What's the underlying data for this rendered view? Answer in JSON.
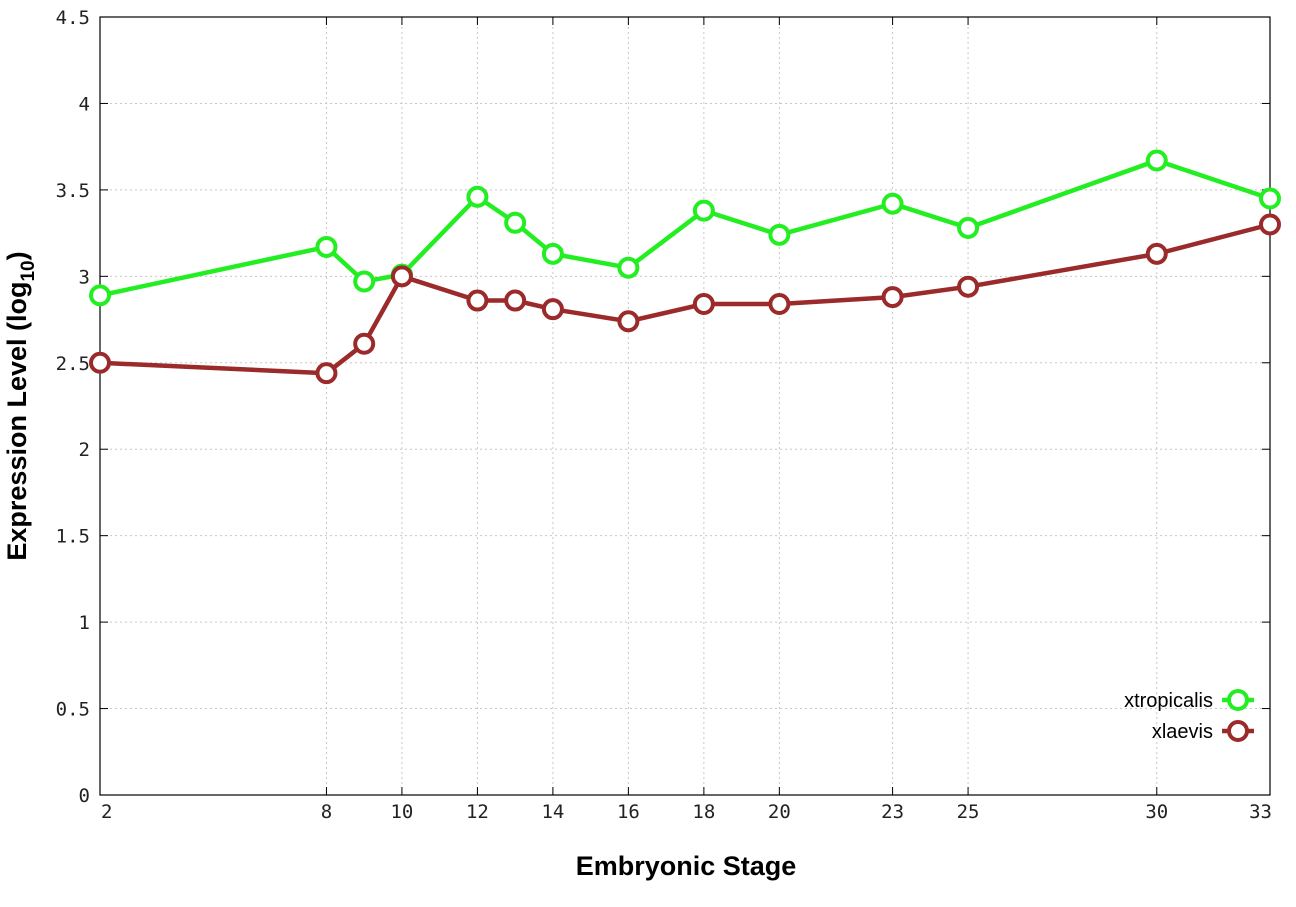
{
  "chart_data": {
    "type": "line",
    "xlabel": "Embryonic Stage",
    "ylabel_main": "Expression Level (log",
    "ylabel_sub": "10",
    "ylabel_close": ")",
    "ylim": [
      0,
      4.5
    ],
    "yticks": [
      0,
      0.5,
      1,
      1.5,
      2,
      2.5,
      3,
      3.5,
      4,
      4.5
    ],
    "ytick_labels": [
      "0",
      "0.5",
      "1",
      "1.5",
      "2",
      "2.5",
      "3",
      "3.5",
      "4",
      "4.5"
    ],
    "x": [
      2,
      8,
      9,
      10,
      12,
      13,
      14,
      16,
      18,
      20,
      23,
      25,
      30,
      33
    ],
    "xticks": [
      2,
      8,
      10,
      12,
      14,
      16,
      18,
      20,
      23,
      25,
      30,
      33
    ],
    "xtick_labels": [
      "2",
      "8",
      "10",
      "12",
      "14",
      "16",
      "18",
      "20",
      "23",
      "25",
      "30",
      "33"
    ],
    "grid": true,
    "legend_position": "bottom-right",
    "series": [
      {
        "name": "xtropicalis",
        "color": "#22ee22",
        "values": [
          2.89,
          3.17,
          2.97,
          3.01,
          3.46,
          3.31,
          3.13,
          3.05,
          3.38,
          3.24,
          3.42,
          3.28,
          3.67,
          3.45
        ]
      },
      {
        "name": "xlaevis",
        "color": "#9b2a2a",
        "values": [
          2.5,
          2.44,
          2.61,
          3.0,
          2.86,
          2.86,
          2.81,
          2.74,
          2.84,
          2.84,
          2.88,
          2.94,
          3.13,
          3.3
        ]
      }
    ]
  }
}
